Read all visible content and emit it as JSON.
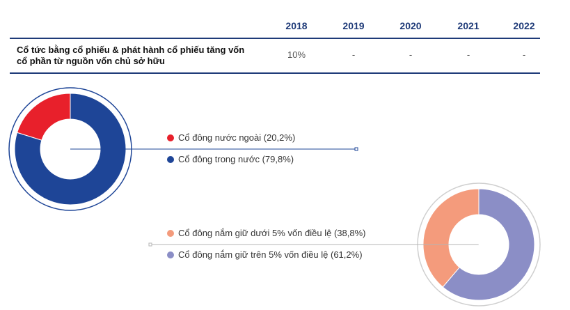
{
  "table": {
    "years": [
      "2018",
      "2019",
      "2020",
      "2021",
      "2022"
    ],
    "row_label": "Cổ tức bằng cổ phiếu & phát hành cổ phiếu tăng vốn cổ phần từ nguồn vốn chủ sở hữu",
    "row_values": [
      "10%",
      "-",
      "-",
      "-",
      "-"
    ]
  },
  "chart_data": [
    {
      "type": "pie",
      "variant": "donut",
      "series": [
        {
          "name": "Cổ đông nước ngoài (20,2%)",
          "value": 20.2,
          "color": "#e8202b"
        },
        {
          "name": "Cổ đông trong nước (79,8%)",
          "value": 79.8,
          "color": "#1e4597"
        }
      ]
    },
    {
      "type": "pie",
      "variant": "donut",
      "series": [
        {
          "name": "Cổ đông nắm giữ dưới 5% vốn điều lệ (38,8%)",
          "value": 38.8,
          "color": "#f49b7c"
        },
        {
          "name": "Cổ đông nắm giữ trên 5% vốn điều lệ (61,2%)",
          "value": 61.2,
          "color": "#8b8ec6"
        }
      ]
    }
  ]
}
